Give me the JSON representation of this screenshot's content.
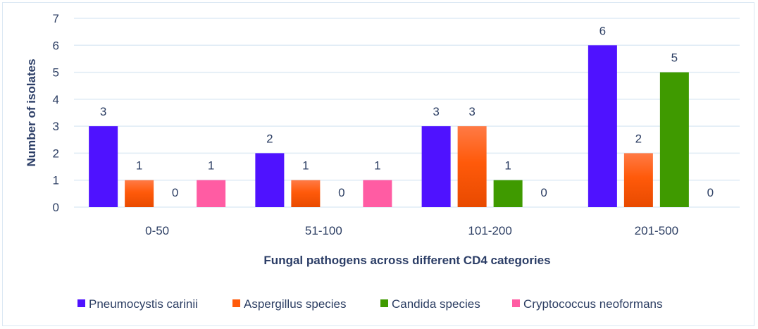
{
  "chart_data": {
    "type": "bar",
    "title": "",
    "xlabel": "Fungal pathogens across different CD4 categories",
    "ylabel": "Number of isolates",
    "ylim": [
      0,
      7
    ],
    "yticks": [
      0,
      1,
      2,
      3,
      4,
      5,
      6,
      7
    ],
    "grid": true,
    "legend_position": "bottom",
    "categories": [
      "0-50",
      "51-100",
      "101-200",
      "201-500"
    ],
    "series": [
      {
        "name": "Pneumocystis carinii",
        "color": "#4f12ff",
        "values": [
          3,
          2,
          3,
          6
        ]
      },
      {
        "name": "Aspergillus species",
        "color": "#ff5a0a",
        "values": [
          1,
          1,
          3,
          2
        ]
      },
      {
        "name": "Candida species",
        "color": "#3f9a00",
        "values": [
          0,
          0,
          1,
          5
        ]
      },
      {
        "name": "Cryptococcus neoformans",
        "color": "#ff5ca3",
        "values": [
          1,
          1,
          0,
          0
        ]
      }
    ]
  }
}
